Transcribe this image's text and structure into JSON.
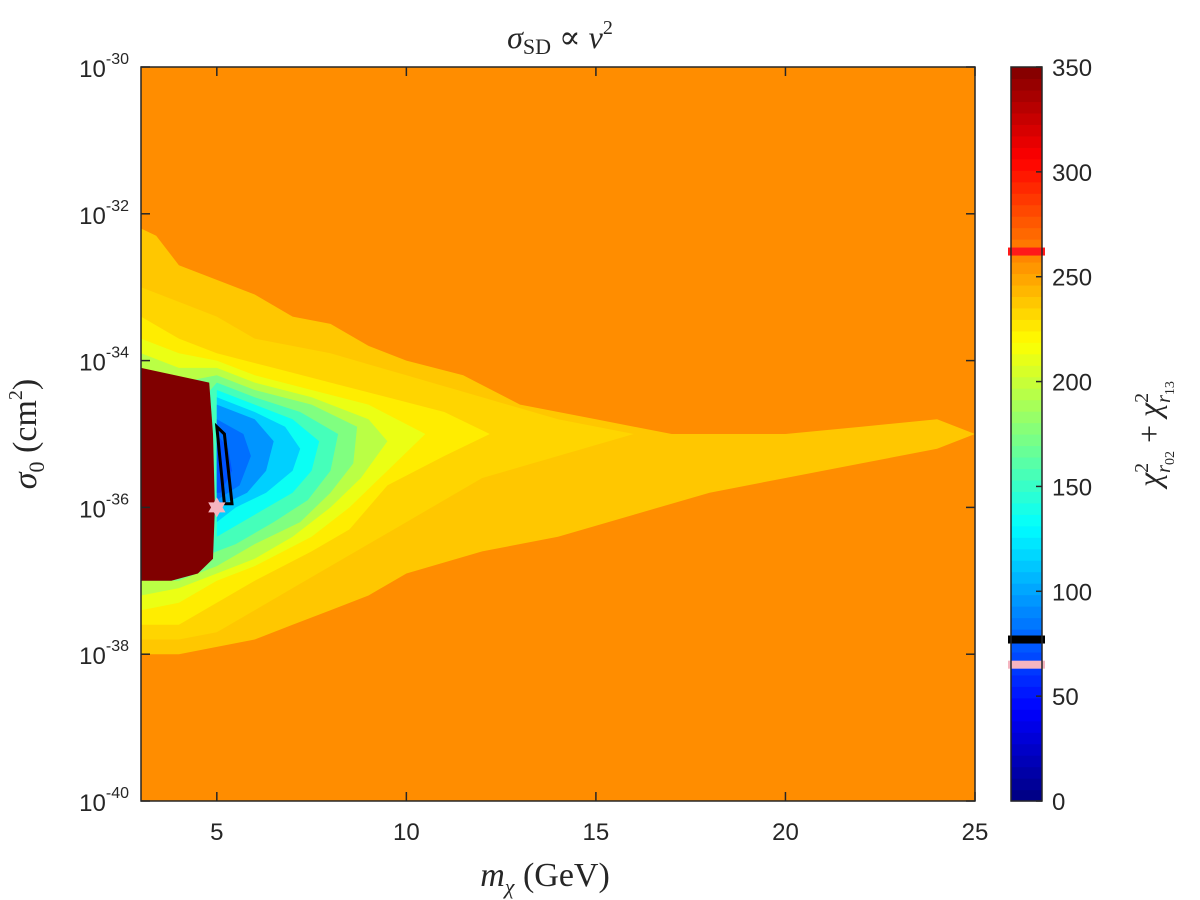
{
  "chart_data": {
    "type": "heatmap",
    "title": "σSD ∝ v²",
    "title_parts": {
      "sigma": "σ",
      "sub": "SD",
      "rel": " ∝ v",
      "sup": "2"
    },
    "xlabel": "mχ (GeV)",
    "xlabel_parts": {
      "m": "m",
      "sub": "χ",
      "unit": " (GeV)"
    },
    "ylabel": "σ0 (cm²)",
    "ylabel_parts": {
      "sigma": "σ",
      "sub": "0",
      "unit": " (cm",
      "sup": "2",
      "close": ")"
    },
    "xlim": [
      3,
      25
    ],
    "ylim_exponent": [
      -40,
      -30
    ],
    "y_scale": "log",
    "x_ticks": [
      5,
      10,
      15,
      20,
      25
    ],
    "y_ticks": [
      {
        "base": "10",
        "exp": "-30",
        "value": -30
      },
      {
        "base": "10",
        "exp": "-32",
        "value": -32
      },
      {
        "base": "10",
        "exp": "-34",
        "value": -34
      },
      {
        "base": "10",
        "exp": "-36",
        "value": -36
      },
      {
        "base": "10",
        "exp": "-38",
        "value": -38
      },
      {
        "base": "10",
        "exp": "-40",
        "value": -40
      }
    ],
    "colorbar": {
      "label": "χ²r02 + χ²r13",
      "label_parts": {
        "chi": "χ",
        "sup": "2",
        "r": "r",
        "s1": "02",
        "plus": " + ",
        "s2": "13"
      },
      "range": [
        0,
        350
      ],
      "ticks": [
        0,
        50,
        100,
        150,
        200,
        250,
        300,
        350
      ],
      "colormap": "jet",
      "markers": [
        {
          "value": 262,
          "color": "#ff1a1a"
        },
        {
          "value": 77,
          "color": "#000000"
        },
        {
          "value": 65,
          "color": "#f5b5c0"
        }
      ]
    },
    "background_value": 258,
    "contour_regions": [
      {
        "value": 238,
        "points": [
          [
            3,
            -32.2
          ],
          [
            3.4,
            -32.3
          ],
          [
            4,
            -32.7
          ],
          [
            5,
            -32.9
          ],
          [
            6,
            -33.1
          ],
          [
            7,
            -33.4
          ],
          [
            8,
            -33.5
          ],
          [
            9,
            -33.8
          ],
          [
            10,
            -34.0
          ],
          [
            11.5,
            -34.2
          ],
          [
            13,
            -34.6
          ],
          [
            15,
            -34.8
          ],
          [
            17,
            -35.0
          ],
          [
            20,
            -35.0
          ],
          [
            22,
            -34.9
          ],
          [
            24,
            -34.8
          ],
          [
            25,
            -35.0
          ],
          [
            24,
            -35.2
          ],
          [
            22,
            -35.4
          ],
          [
            20,
            -35.6
          ],
          [
            18,
            -35.8
          ],
          [
            16,
            -36.1
          ],
          [
            14,
            -36.4
          ],
          [
            12,
            -36.6
          ],
          [
            10,
            -36.9
          ],
          [
            9,
            -37.2
          ],
          [
            8,
            -37.4
          ],
          [
            7,
            -37.6
          ],
          [
            6,
            -37.8
          ],
          [
            5,
            -37.9
          ],
          [
            4,
            -38.0
          ],
          [
            3,
            -38.0
          ]
        ]
      },
      {
        "value": 233,
        "points": [
          [
            3,
            -33.0
          ],
          [
            4,
            -33.2
          ],
          [
            5,
            -33.4
          ],
          [
            6,
            -33.7
          ],
          [
            8,
            -33.9
          ],
          [
            10,
            -34.2
          ],
          [
            12,
            -34.5
          ],
          [
            14,
            -34.8
          ],
          [
            16,
            -35.0
          ],
          [
            14,
            -35.3
          ],
          [
            12,
            -35.6
          ],
          [
            10,
            -36.2
          ],
          [
            8,
            -36.8
          ],
          [
            7,
            -37.1
          ],
          [
            6,
            -37.4
          ],
          [
            5,
            -37.7
          ],
          [
            4,
            -37.8
          ],
          [
            3,
            -37.8
          ]
        ]
      },
      {
        "value": 225,
        "points": [
          [
            3,
            -33.4
          ],
          [
            4,
            -33.7
          ],
          [
            5,
            -33.9
          ],
          [
            6.5,
            -34.1
          ],
          [
            8,
            -34.3
          ],
          [
            9.5,
            -34.5
          ],
          [
            11,
            -34.7
          ],
          [
            12.2,
            -35.0
          ],
          [
            11,
            -35.3
          ],
          [
            9.5,
            -35.7
          ],
          [
            8.5,
            -36.3
          ],
          [
            7.5,
            -36.6
          ],
          [
            6,
            -37.0
          ],
          [
            5,
            -37.3
          ],
          [
            4,
            -37.6
          ],
          [
            3,
            -37.6
          ]
        ]
      },
      {
        "value": 212,
        "points": [
          [
            3,
            -33.7
          ],
          [
            4,
            -33.9
          ],
          [
            5,
            -34.0
          ],
          [
            6,
            -34.2
          ],
          [
            7.5,
            -34.4
          ],
          [
            9,
            -34.6
          ],
          [
            10.5,
            -35.0
          ],
          [
            9.5,
            -35.5
          ],
          [
            8.5,
            -36.0
          ],
          [
            7.5,
            -36.4
          ],
          [
            6,
            -36.8
          ],
          [
            5,
            -37.0
          ],
          [
            4,
            -37.3
          ],
          [
            3,
            -37.4
          ]
        ]
      },
      {
        "value": 195,
        "points": [
          [
            3,
            -33.9
          ],
          [
            4,
            -34.1
          ],
          [
            5,
            -34.1
          ],
          [
            6,
            -34.3
          ],
          [
            7.5,
            -34.5
          ],
          [
            9,
            -34.8
          ],
          [
            9.5,
            -35.1
          ],
          [
            8.8,
            -35.6
          ],
          [
            8,
            -36.0
          ],
          [
            7,
            -36.4
          ],
          [
            6,
            -36.7
          ],
          [
            5,
            -36.9
          ],
          [
            4,
            -37.1
          ],
          [
            3,
            -37.2
          ]
        ]
      },
      {
        "value": 175,
        "points": [
          [
            3,
            -34.1
          ],
          [
            4,
            -34.3
          ],
          [
            5,
            -34.2
          ],
          [
            6,
            -34.4
          ],
          [
            7.5,
            -34.6
          ],
          [
            8.7,
            -34.9
          ],
          [
            8.6,
            -35.4
          ],
          [
            8,
            -35.8
          ],
          [
            7.2,
            -36.2
          ],
          [
            6,
            -36.5
          ],
          [
            5,
            -36.8
          ],
          [
            4,
            -37.0
          ],
          [
            3,
            -37.0
          ]
        ]
      },
      {
        "value": 155,
        "points": [
          [
            3,
            -34.3
          ],
          [
            4.5,
            -34.6
          ],
          [
            5,
            -34.3
          ],
          [
            6,
            -34.5
          ],
          [
            7.2,
            -34.7
          ],
          [
            8.2,
            -35.0
          ],
          [
            8,
            -35.5
          ],
          [
            7.4,
            -35.9
          ],
          [
            6.5,
            -36.2
          ],
          [
            5.5,
            -36.5
          ],
          [
            5,
            -36.6
          ],
          [
            4,
            -36.8
          ],
          [
            3,
            -36.8
          ]
        ]
      },
      {
        "value": 135,
        "points": [
          [
            5,
            -34.4
          ],
          [
            6,
            -34.6
          ],
          [
            7,
            -34.8
          ],
          [
            7.7,
            -35.1
          ],
          [
            7.5,
            -35.5
          ],
          [
            7,
            -35.8
          ],
          [
            6,
            -36.1
          ],
          [
            5,
            -36.4
          ]
        ]
      },
      {
        "value": 115,
        "points": [
          [
            5,
            -34.5
          ],
          [
            6,
            -34.7
          ],
          [
            6.8,
            -34.9
          ],
          [
            7.2,
            -35.2
          ],
          [
            7,
            -35.5
          ],
          [
            6.3,
            -35.8
          ],
          [
            5.5,
            -36.0
          ],
          [
            5,
            -36.2
          ]
        ]
      },
      {
        "value": 95,
        "points": [
          [
            5,
            -34.6
          ],
          [
            6,
            -34.8
          ],
          [
            6.5,
            -35.1
          ],
          [
            6.3,
            -35.5
          ],
          [
            5.8,
            -35.8
          ],
          [
            5,
            -36.0
          ]
        ]
      },
      {
        "value": 82,
        "points": [
          [
            5,
            -34.8
          ],
          [
            5.7,
            -35.0
          ],
          [
            5.9,
            -35.3
          ],
          [
            5.6,
            -35.7
          ],
          [
            5,
            -35.9
          ]
        ]
      },
      {
        "value": 72,
        "points": [
          [
            5,
            -35.0
          ],
          [
            5.3,
            -35.2
          ],
          [
            5.4,
            -35.5
          ],
          [
            5.1,
            -35.8
          ],
          [
            5,
            -35.8
          ]
        ]
      },
      {
        "value": 350,
        "points": [
          [
            3,
            -34.1
          ],
          [
            4.8,
            -34.3
          ],
          [
            4.9,
            -35.0
          ],
          [
            4.95,
            -36.0
          ],
          [
            4.9,
            -36.7
          ],
          [
            4.5,
            -36.9
          ],
          [
            3.8,
            -37.0
          ],
          [
            3,
            -37.0
          ]
        ]
      }
    ],
    "best_fit_region": {
      "points": [
        [
          5.0,
          -34.9
        ],
        [
          5.2,
          -35.0
        ],
        [
          5.4,
          -35.95
        ],
        [
          5.2,
          -35.95
        ],
        [
          5.0,
          -34.9
        ]
      ],
      "stroke": "#000000"
    },
    "best_fit_point": {
      "x": 5.0,
      "y": -36.0,
      "marker": "hexagram",
      "color": "#f5b5c0"
    }
  }
}
